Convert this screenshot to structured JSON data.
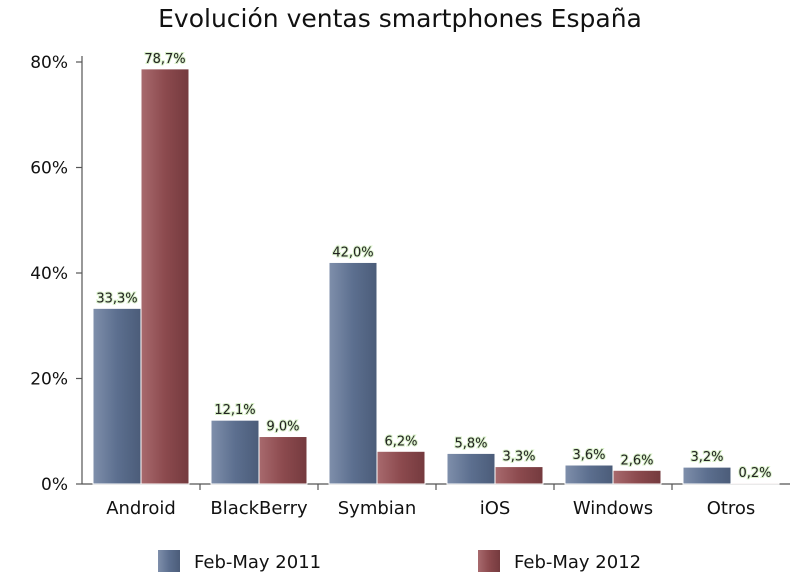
{
  "chart_data": {
    "type": "bar",
    "title": "Evolución ventas smartphones España",
    "categories": [
      "Android",
      "BlackBerry",
      "Symbian",
      "iOS",
      "Windows",
      "Otros"
    ],
    "series": [
      {
        "name": "Feb-May 2011",
        "color": "#5c6f8f",
        "values": [
          33.3,
          12.1,
          42.0,
          5.8,
          3.6,
          3.2
        ],
        "labels": [
          "33,3%",
          "12,1%",
          "42,0%",
          "5,8%",
          "3,6%",
          "3,2%"
        ]
      },
      {
        "name": "Feb-May 2012",
        "color": "#8c4a4e",
        "values": [
          78.7,
          9.0,
          6.2,
          3.3,
          2.6,
          0.2
        ],
        "labels": [
          "78,7%",
          "9,0%",
          "6,2%",
          "3,3%",
          "2,6%",
          "0,2%"
        ]
      }
    ],
    "yticks": [
      0,
      20,
      40,
      60,
      80
    ],
    "ytick_labels": [
      "0%",
      "20%",
      "40%",
      "60%",
      "80%"
    ],
    "ylim": [
      0,
      80
    ],
    "grid": false,
    "legend_position": "bottom"
  }
}
